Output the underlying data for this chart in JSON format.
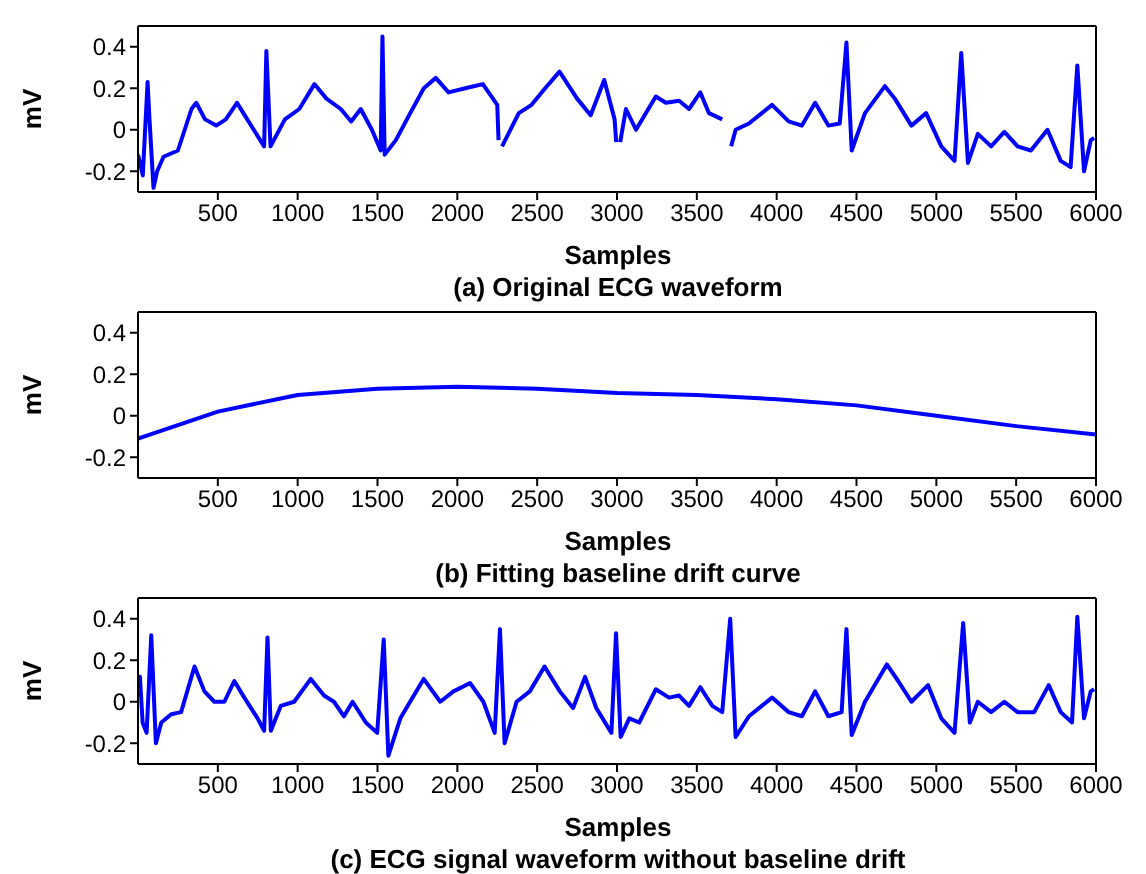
{
  "chart_data": [
    {
      "type": "line",
      "title": "(a) Original ECG waveform",
      "xlabel": "Samples",
      "ylabel": "mV",
      "xlim": [
        0,
        6000
      ],
      "xticks": [
        500,
        1000,
        1500,
        2000,
        2500,
        3000,
        3500,
        4000,
        4500,
        5000,
        5500,
        6000
      ],
      "ylim": [
        -0.3,
        0.5
      ],
      "yticks": [
        -0.2,
        0,
        0.2,
        0.4
      ],
      "series": [
        {
          "color": "#0000ff",
          "x": [
            0,
            30,
            60,
            72,
            97,
            120,
            160,
            250,
            335,
            365,
            420,
            490,
            550,
            620,
            660,
            725,
            790,
            804,
            830,
            920,
            1010,
            1105,
            1180,
            1270,
            1335,
            1395,
            1465,
            1520,
            1531,
            1545,
            1615,
            1705,
            1790,
            1865,
            1945,
            2050,
            2160,
            2250,
            2258,
            2267,
            2280,
            2385,
            2465,
            2550,
            2640,
            2750,
            2835,
            2920,
            2985,
            2995,
            3009,
            3020,
            3056,
            3119,
            3243,
            3306,
            3389,
            3451,
            3522,
            3576,
            3659,
            3701,
            3715,
            3743,
            3826,
            3971,
            4075,
            4158,
            4241,
            4324,
            4395,
            4437,
            4470,
            4553,
            4678,
            4740,
            4844,
            4936,
            5031,
            5114,
            5156,
            5198,
            5260,
            5343,
            5426,
            5509,
            5592,
            5696,
            5779,
            5841,
            5883,
            5925,
            5967,
            5988
          ],
          "values": [
            -0.12,
            -0.22,
            0.23,
            0.05,
            -0.28,
            -0.2,
            -0.13,
            -0.1,
            0.1,
            0.13,
            0.05,
            0.02,
            0.05,
            0.13,
            0.08,
            0.0,
            -0.08,
            0.38,
            -0.08,
            0.05,
            0.1,
            0.22,
            0.15,
            0.1,
            0.04,
            0.1,
            0.0,
            -0.1,
            0.45,
            -0.12,
            -0.05,
            0.08,
            0.2,
            0.25,
            0.18,
            0.2,
            0.22,
            0.12,
            -0.05,
            null,
            -0.08,
            0.08,
            0.12,
            0.2,
            0.28,
            0.15,
            0.07,
            0.24,
            0.05,
            -0.06,
            null,
            -0.06,
            0.1,
            0.0,
            0.16,
            0.13,
            0.14,
            0.1,
            0.18,
            0.08,
            0.05,
            null,
            -0.08,
            0.0,
            0.03,
            0.12,
            0.04,
            0.02,
            0.13,
            0.02,
            0.03,
            0.42,
            -0.1,
            0.08,
            0.21,
            0.15,
            0.02,
            0.08,
            -0.08,
            -0.15,
            0.37,
            -0.16,
            -0.02,
            -0.08,
            -0.01,
            -0.08,
            -0.1,
            0.0,
            -0.15,
            -0.18,
            0.31,
            -0.2,
            -0.05,
            -0.04
          ]
        }
      ]
    },
    {
      "type": "line",
      "title": "(b) Fitting baseline drift curve",
      "xlabel": "Samples",
      "ylabel": "mV",
      "xlim": [
        0,
        6000
      ],
      "xticks": [
        500,
        1000,
        1500,
        2000,
        2500,
        3000,
        3500,
        4000,
        4500,
        5000,
        5500,
        6000
      ],
      "ylim": [
        -0.3,
        0.5
      ],
      "yticks": [
        -0.2,
        0,
        0.2,
        0.4
      ],
      "series": [
        {
          "color": "#0000ff",
          "x": [
            0,
            500,
            1000,
            1500,
            2000,
            2500,
            3000,
            3500,
            4000,
            4500,
            5000,
            5500,
            6000
          ],
          "values": [
            -0.11,
            0.02,
            0.1,
            0.13,
            0.14,
            0.13,
            0.11,
            0.1,
            0.08,
            0.05,
            0.0,
            -0.05,
            -0.09
          ]
        }
      ]
    },
    {
      "type": "line",
      "title": "(c) ECG signal waveform without baseline drift",
      "xlabel": "Samples",
      "ylabel": "mV",
      "xlim": [
        0,
        6000
      ],
      "xticks": [
        500,
        1000,
        1500,
        2000,
        2500,
        3000,
        3500,
        4000,
        4500,
        5000,
        5500,
        6000
      ],
      "ylim": [
        -0.3,
        0.5
      ],
      "yticks": [
        -0.2,
        0,
        0.2,
        0.4
      ],
      "series": [
        {
          "color": "#0000ff",
          "x": [
            0,
            12,
            29,
            54,
            83,
            112,
            146,
            208,
            270,
            354,
            416,
            478,
            541,
            603,
            666,
            749,
            790,
            811,
            832,
            894,
            978,
            1082,
            1165,
            1227,
            1290,
            1344,
            1427,
            1498,
            1539,
            1568,
            1643,
            1789,
            1893,
            1976,
            2080,
            2163,
            2234,
            2267,
            2296,
            2371,
            2454,
            2546,
            2642,
            2725,
            2800,
            2870,
            2965,
            2994,
            3023,
            3077,
            3139,
            3243,
            3326,
            3389,
            3451,
            3522,
            3597,
            3659,
            3709,
            3743,
            3826,
            3971,
            4075,
            4158,
            4241,
            4324,
            4407,
            4437,
            4470,
            4553,
            4690,
            4761,
            4844,
            4948,
            5031,
            5114,
            5168,
            5210,
            5260,
            5343,
            5426,
            5509,
            5613,
            5704,
            5779,
            5850,
            5883,
            5925,
            5967,
            5988
          ],
          "values": [
            0.05,
            0.12,
            -0.1,
            -0.15,
            0.32,
            -0.2,
            -0.1,
            -0.06,
            -0.05,
            0.17,
            0.05,
            0.0,
            0.0,
            0.1,
            0.02,
            -0.08,
            -0.14,
            0.31,
            -0.14,
            -0.02,
            0.0,
            0.11,
            0.03,
            0.0,
            -0.07,
            0.0,
            -0.1,
            -0.15,
            0.3,
            -0.26,
            -0.08,
            0.11,
            0.0,
            0.05,
            0.09,
            0.0,
            -0.15,
            0.35,
            -0.2,
            0.0,
            0.05,
            0.17,
            0.05,
            -0.03,
            0.12,
            -0.03,
            -0.15,
            0.33,
            -0.17,
            -0.08,
            -0.1,
            0.06,
            0.02,
            0.03,
            -0.02,
            0.07,
            -0.02,
            -0.05,
            0.4,
            -0.17,
            -0.07,
            0.02,
            -0.05,
            -0.07,
            0.05,
            -0.07,
            -0.05,
            0.35,
            -0.16,
            0.0,
            0.18,
            0.1,
            0.0,
            0.08,
            -0.08,
            -0.15,
            0.38,
            -0.1,
            0.0,
            -0.05,
            0.0,
            -0.05,
            -0.05,
            0.08,
            -0.05,
            -0.1,
            0.41,
            -0.08,
            0.05,
            0.06
          ]
        }
      ]
    }
  ]
}
